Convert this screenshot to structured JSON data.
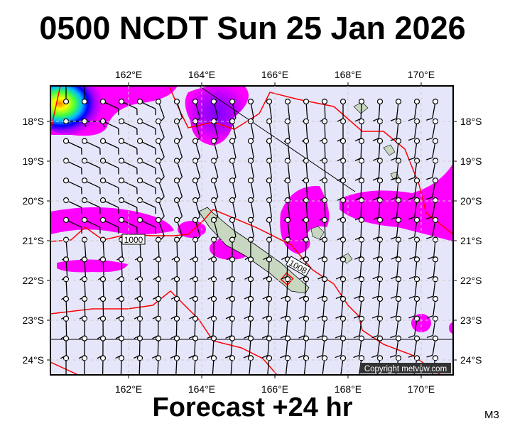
{
  "title": "0500 NCDT Sun 25 Jan 2026",
  "footer": "Forecast +24 hr",
  "model_label": "M3",
  "copyright": "Copyright metvuw.com",
  "map": {
    "lon_ticks": [
      "162°E",
      "164°E",
      "166°E",
      "168°E",
      "170°E"
    ],
    "lat_ticks": [
      "18°S",
      "19°S",
      "20°S",
      "21°S",
      "22°S",
      "23°S",
      "24°S"
    ],
    "isobar_labels": [
      "1000",
      "1008"
    ],
    "background_color": "#e6e6fa",
    "shading_color": "#ff00ff",
    "boundary_color": "#ff0000",
    "land_color": "#c8d8c0"
  }
}
